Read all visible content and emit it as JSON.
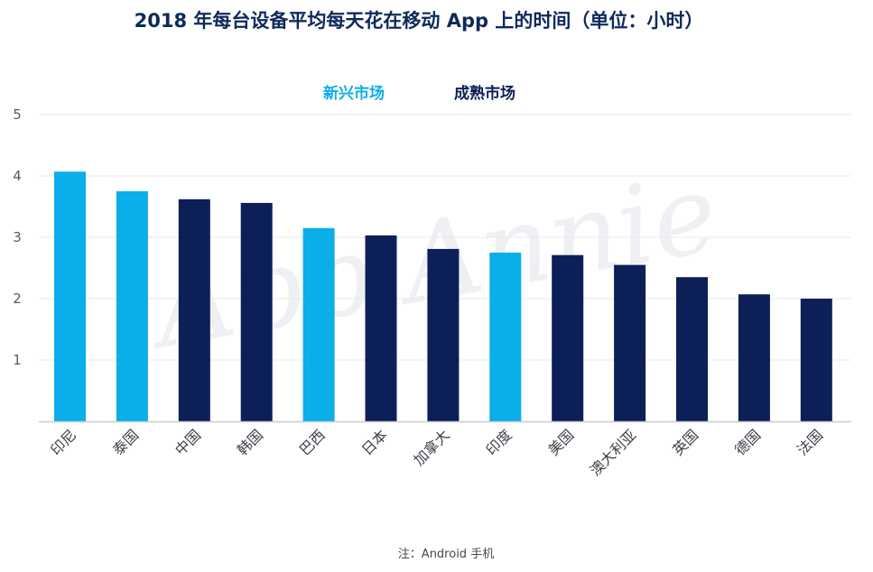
{
  "chart_data": {
    "type": "bar",
    "title": "2018 年每台设备平均每天花在移动 App 上的时间（单位：小时）",
    "categories": [
      "印尼",
      "泰国",
      "中国",
      "韩国",
      "巴西",
      "日本",
      "加拿大",
      "印度",
      "美国",
      "澳大利亚",
      "英国",
      "德国",
      "法国"
    ],
    "values": [
      4.07,
      3.75,
      3.62,
      3.56,
      3.15,
      3.03,
      2.81,
      2.75,
      2.71,
      2.55,
      2.35,
      2.07,
      2.0
    ],
    "groups": [
      "新兴市场",
      "新兴市场",
      "成熟市场",
      "成熟市场",
      "新兴市场",
      "成熟市场",
      "成熟市场",
      "新兴市场",
      "成熟市场",
      "成熟市场",
      "成熟市场",
      "成熟市场",
      "成熟市场"
    ],
    "legend": [
      {
        "name": "新兴市场",
        "color": "#0aaee8"
      },
      {
        "name": "成熟市场",
        "color": "#0c2057"
      }
    ],
    "legend_position": "top-center",
    "yticks": [
      "1",
      "2",
      "3",
      "4",
      "5"
    ],
    "ylim": [
      0,
      5
    ],
    "grid": true,
    "xlabel": "",
    "ylabel": "",
    "watermark": "App Annie",
    "note": "注：Android 手机"
  }
}
